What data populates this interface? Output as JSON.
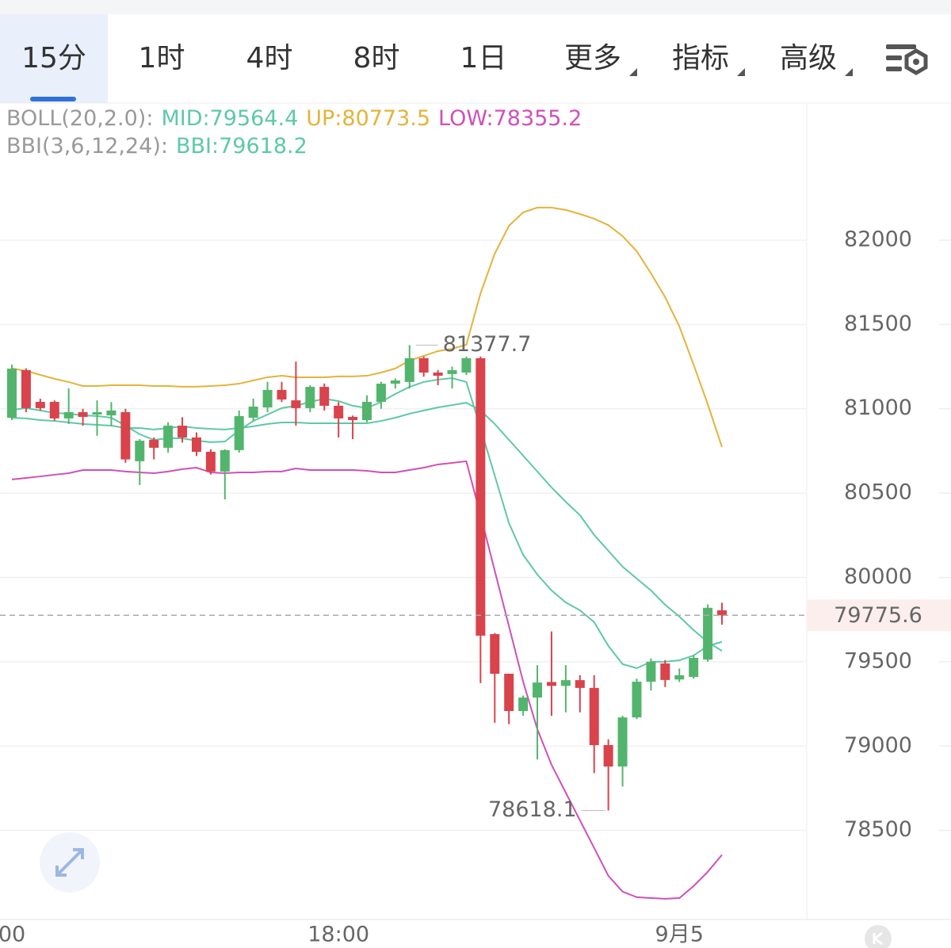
{
  "tabs": [
    "15分",
    "1时",
    "4时",
    "8时",
    "1日",
    "更多",
    "指标",
    "高级"
  ],
  "chart_data": {
    "type": "candlestick",
    "categories": [
      "00",
      null,
      null,
      null,
      null,
      null,
      null,
      null,
      null,
      null,
      null,
      null,
      null,
      null,
      null,
      null,
      null,
      null,
      null,
      null,
      null,
      null,
      null,
      "18:00",
      null,
      null,
      null,
      null,
      null,
      null,
      null,
      null,
      null,
      null,
      null,
      null,
      null,
      null,
      null,
      null,
      null,
      null,
      null,
      null,
      null,
      null,
      null,
      "9月5",
      null,
      null,
      null
    ],
    "open": [
      80947,
      81229,
      81041,
      81041,
      80943,
      80980,
      80966,
      80961,
      80980,
      80689,
      80816,
      80769,
      80900,
      80830,
      80745,
      80628,
      80755,
      80947,
      81008,
      81112,
      81050,
      81004,
      81130,
      81018,
      80952,
      80933,
      81041,
      81149,
      81159,
      81300,
      81215,
      81206,
      81215,
      81300,
      79664,
      79429,
      79208,
      79288,
      79380,
      79357,
      79391,
      79345,
      79006,
      78879,
      79170,
      79382,
      79490,
      79395,
      79410,
      79513,
      79805
    ],
    "high": [
      81262,
      81240,
      81060,
      81050,
      81121,
      81000,
      81050,
      81040,
      81000,
      80820,
      80830,
      80920,
      80950,
      80860,
      80760,
      80760,
      80990,
      81060,
      81160,
      81160,
      81280,
      81140,
      81150,
      81040,
      80960,
      81080,
      81160,
      81180,
      81377.7,
      81310,
      81230,
      81250,
      81310,
      81310,
      79670,
      79430,
      79300,
      79480,
      79680,
      79480,
      79420,
      79420,
      79040,
      79180,
      79400,
      79520,
      79510,
      79460,
      79540,
      79840,
      79850
    ],
    "low": [
      80933,
      80980,
      80990,
      80930,
      80910,
      80900,
      80840,
      80900,
      80680,
      80548,
      80700,
      80740,
      80800,
      80720,
      80610,
      80463,
      80740,
      80930,
      80980,
      81040,
      80900,
      80980,
      80990,
      80830,
      80820,
      80920,
      81000,
      81120,
      81120,
      81190,
      81140,
      81120,
      81200,
      79373,
      79138,
      79130,
      79180,
      78921,
      79180,
      79200,
      79200,
      78840,
      78618.1,
      78760,
      79160,
      79330,
      79350,
      79380,
      79400,
      79500,
      79720
    ],
    "close": [
      81238,
      81004,
      81004,
      80943,
      80980,
      80952,
      80980,
      80990,
      80700,
      80811,
      80769,
      80900,
      80830,
      80745,
      80628,
      80755,
      80957,
      81013,
      81112,
      81055,
      81004,
      81130,
      81018,
      80943,
      80933,
      81041,
      81149,
      81168,
      81300,
      81215,
      81196,
      81229,
      81300,
      79655,
      79429,
      79208,
      79288,
      79377,
      79357,
      79391,
      79345,
      79006,
      78879,
      79170,
      79382,
      79500,
      79392,
      79420,
      79523,
      79820,
      79775.6
    ],
    "up_color": "#53b56d",
    "down_color": "#d9434c",
    "series": [
      {
        "name": "MID:",
        "color": "#5cc9a7",
        "values": [
          80947,
          80943,
          80933,
          80928,
          80919,
          80910,
          80905,
          80900,
          80886,
          80886,
          80877,
          80886,
          80896,
          80886,
          80881,
          80877,
          80886,
          80896,
          80910,
          80919,
          80919,
          80914,
          80914,
          80914,
          80914,
          80914,
          80928,
          80947,
          80971,
          80990,
          81008,
          81022,
          81036,
          80990,
          80910,
          80816,
          80722,
          80628,
          80534,
          80449,
          80369,
          80252,
          80158,
          80064,
          79993,
          79923,
          79838,
          79768,
          79688,
          79617,
          79564.4
        ]
      },
      {
        "name": "UP:",
        "color": "#e3b43a",
        "values": [
          81239,
          81225,
          81201,
          81178,
          81159,
          81135,
          81135,
          81140,
          81140,
          81140,
          81135,
          81135,
          81131,
          81131,
          81135,
          81140,
          81149,
          81168,
          81187,
          81196,
          81187,
          81187,
          81187,
          81192,
          81192,
          81196,
          81215,
          81239,
          81286,
          81314,
          81342,
          81356,
          81380,
          81685,
          81920,
          82085,
          82165,
          82193,
          82193,
          82179,
          82155,
          82127,
          82089,
          82024,
          81934,
          81803,
          81662,
          81488,
          81262,
          81027,
          80773.5
        ]
      },
      {
        "name": "LOW:",
        "color": "#cf50b8",
        "values": [
          80581,
          80590,
          80599,
          80609,
          80618,
          80637,
          80637,
          80637,
          80628,
          80623,
          80618,
          80628,
          80642,
          80651,
          80623,
          80618,
          80623,
          80623,
          80628,
          80628,
          80646,
          80637,
          80637,
          80637,
          80637,
          80632,
          80623,
          80623,
          80637,
          80651,
          80670,
          80679,
          80689,
          80369,
          80040,
          79711,
          79382,
          79100,
          78889,
          78724,
          78560,
          78396,
          78231,
          78137,
          78104,
          78099,
          78095,
          78099,
          78170,
          78255,
          78355.2
        ]
      },
      {
        "name": "BBI:",
        "color": "#5cc9a7",
        "values": [
          80994,
          81004,
          80990,
          80975,
          80971,
          80961,
          80957,
          80947,
          80900,
          80849,
          80816,
          80825,
          80825,
          80811,
          80802,
          80806,
          80872,
          80928,
          80966,
          81004,
          81018,
          81041,
          81060,
          81046,
          81018,
          81004,
          81041,
          81088,
          81130,
          81159,
          81173,
          81182,
          81159,
          80886,
          80604,
          80322,
          80134,
          80017,
          79923,
          79852,
          79805,
          79735,
          79594,
          79486,
          79462,
          79500,
          79500,
          79509,
          79537,
          79594,
          79618.2
        ]
      }
    ],
    "indicators": [
      {
        "label": "BOLL(20,2.0):",
        "series": [
          0,
          1,
          2
        ]
      },
      {
        "label": "BBI(3,6,12,24):",
        "series": [
          3
        ]
      }
    ],
    "ylim": [
      77972,
      82813
    ],
    "yticks": [
      78500,
      79000,
      79500,
      80000,
      80500,
      81000,
      81500,
      82000
    ],
    "grid": true
  }
}
